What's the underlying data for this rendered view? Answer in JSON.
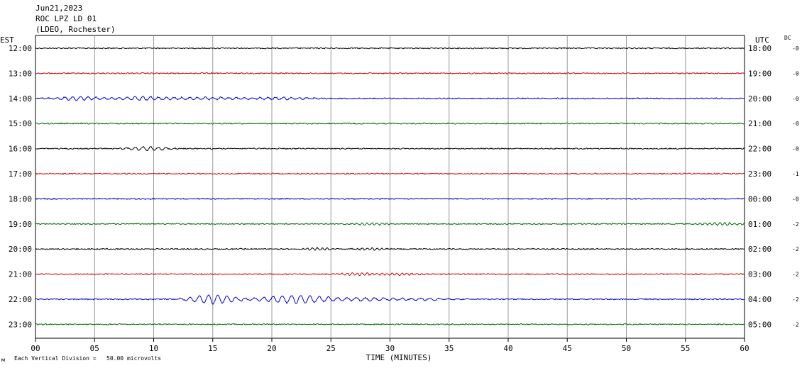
{
  "header": {
    "date": "Jun21,2023",
    "station": "ROC LPZ LD 01",
    "network": "(LDEO, Rochester)"
  },
  "left_timezone": "EST",
  "right_timezone": "UTC",
  "dc_header": "DC",
  "footer_note": "Each Vertical Division =   50.00 microvolts",
  "footer_mark": "м",
  "colors": {
    "trace_cycle": [
      "#000000",
      "#cc0000",
      "#0000cc",
      "#006600"
    ],
    "grid": "#999999"
  },
  "chart_data": {
    "type": "line",
    "xlabel": "TIME (MINUTES)",
    "xlim": [
      0,
      60
    ],
    "xticks": [
      "00",
      "05",
      "10",
      "15",
      "20",
      "25",
      "30",
      "35",
      "40",
      "45",
      "50",
      "55",
      "60"
    ],
    "rows": [
      {
        "est": "12:00",
        "utc": "18:00",
        "dc": "-0",
        "events": []
      },
      {
        "est": "13:00",
        "utc": "19:00",
        "dc": "-0",
        "events": []
      },
      {
        "est": "14:00",
        "utc": "20:00",
        "dc": "-0",
        "events": [
          [
            3.5,
            2.2,
            2.5,
            11
          ],
          [
            9,
            2.6,
            2.5,
            11
          ],
          [
            14.5,
            3,
            1.6,
            11
          ],
          [
            21,
            3,
            1.6,
            11
          ]
        ]
      },
      {
        "est": "15:00",
        "utc": "21:00",
        "dc": "-0",
        "events": []
      },
      {
        "est": "16:00",
        "utc": "22:00",
        "dc": "-0",
        "events": [
          [
            9.5,
            1.8,
            2.8,
            11
          ]
        ]
      },
      {
        "est": "17:00",
        "utc": "23:00",
        "dc": "-1",
        "events": []
      },
      {
        "est": "18:00",
        "utc": "00:00",
        "dc": "-0",
        "events": []
      },
      {
        "est": "19:00",
        "utc": "01:00",
        "dc": "-2",
        "events": [
          [
            28.5,
            1.6,
            1.8,
            7
          ],
          [
            58,
            2,
            2.2,
            7
          ]
        ]
      },
      {
        "est": "20:00",
        "utc": "02:00",
        "dc": "-2",
        "events": [
          [
            24,
            1.5,
            1.8,
            7
          ],
          [
            28.5,
            1.5,
            1.8,
            7
          ]
        ]
      },
      {
        "est": "21:00",
        "utc": "03:00",
        "dc": "-2",
        "events": [
          [
            27,
            2,
            1.8,
            7
          ],
          [
            31,
            2,
            1.6,
            7
          ]
        ]
      },
      {
        "est": "22:00",
        "utc": "04:00",
        "dc": "-2",
        "events": [
          [
            15,
            2,
            6.5,
            13
          ],
          [
            22,
            3.2,
            5.5,
            13
          ],
          [
            28,
            2.5,
            2,
            13
          ],
          [
            33,
            2.5,
            1.4,
            13
          ]
        ]
      },
      {
        "est": "23:00",
        "utc": "05:00",
        "dc": "-2",
        "events": []
      }
    ]
  }
}
